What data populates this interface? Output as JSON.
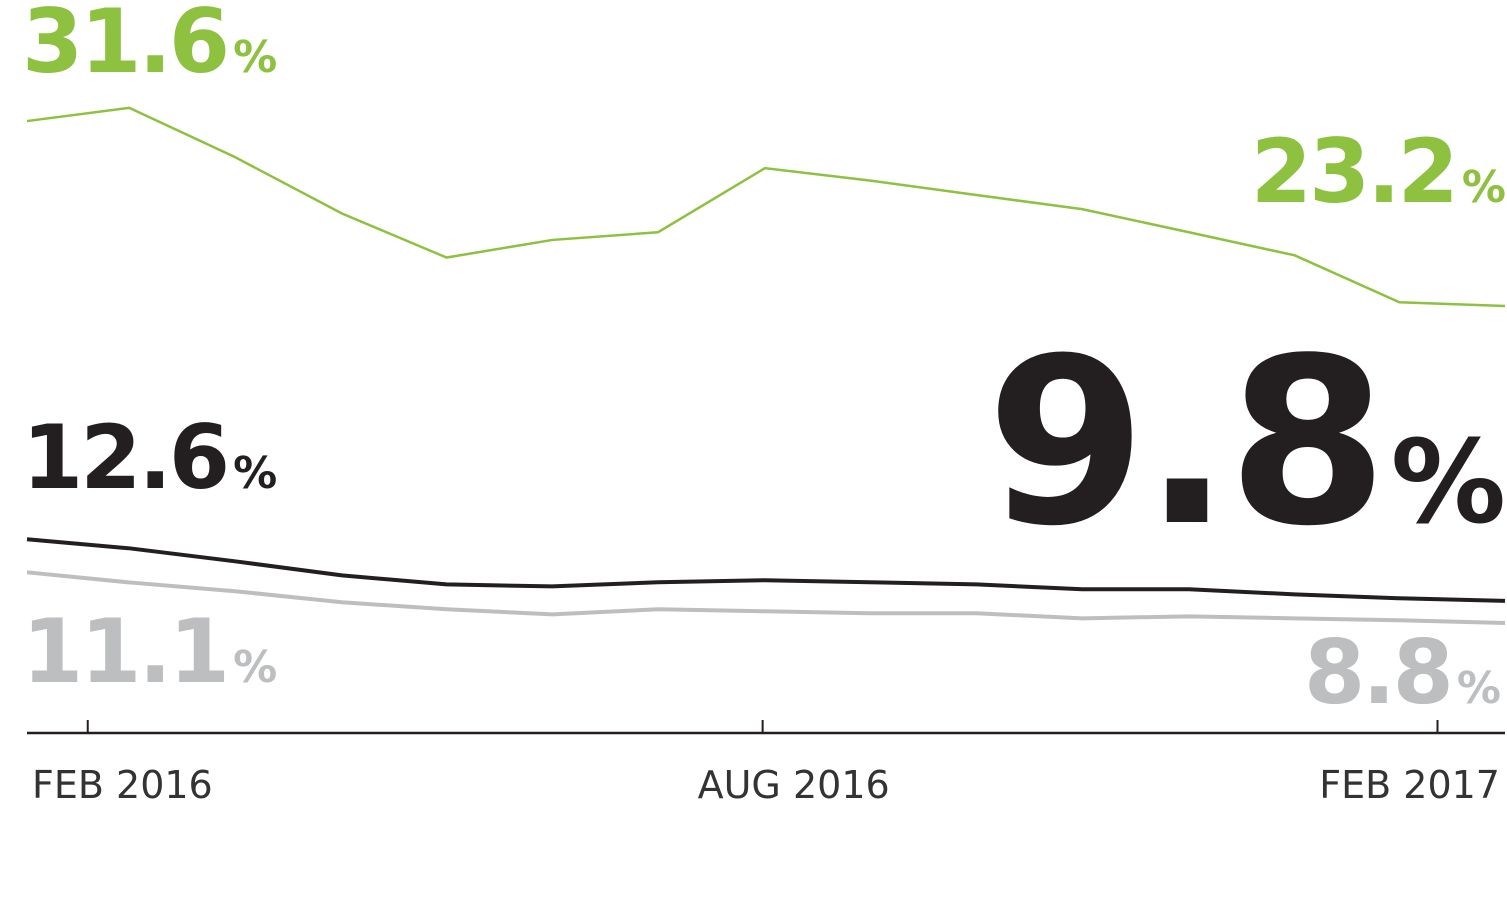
{
  "chart_data": {
    "type": "line",
    "value_unit": "%",
    "x": [
      -0.54,
      0.37,
      1.31,
      2.26,
      3.19,
      4.13,
      5.07,
      6.02,
      6.95,
      7.9,
      8.84,
      9.79,
      10.73,
      11.66,
      12.6
    ],
    "xlim": [
      -0.54,
      12.6
    ],
    "xticks": [
      {
        "value": 0,
        "label": "FEB 2016"
      },
      {
        "value": 6,
        "label": "AUG 2016"
      },
      {
        "value": 12,
        "label": "FEB 2017"
      }
    ],
    "ylim": [
      3.8,
      37.1
    ],
    "series": [
      {
        "color": "#8dc13f",
        "width": 2.5,
        "values": [
          31.6,
          32.2,
          29.96,
          27.4,
          25.4,
          26.2,
          26.55,
          29.46,
          28.9,
          28.24,
          27.6,
          26.55,
          25.5,
          23.37,
          23.2
        ],
        "value_labels": [
          "31.6",
          null,
          null,
          null,
          null,
          null,
          null,
          null,
          null,
          null,
          null,
          null,
          null,
          null,
          "23.2"
        ]
      },
      {
        "color": "#231f20",
        "width": 4,
        "values": [
          12.6,
          12.19,
          11.6,
          10.96,
          10.55,
          10.46,
          10.65,
          10.74,
          10.65,
          10.55,
          10.33,
          10.33,
          10.1,
          9.92,
          9.8
        ],
        "value_labels": [
          "12.6",
          null,
          null,
          null,
          null,
          null,
          null,
          null,
          null,
          null,
          null,
          null,
          null,
          null,
          "9.8"
        ]
      },
      {
        "color": "#bcbec0",
        "width": 4,
        "values": [
          11.1,
          10.64,
          10.24,
          9.74,
          9.42,
          9.19,
          9.42,
          9.33,
          9.24,
          9.24,
          9.01,
          9.1,
          9.01,
          8.92,
          8.8
        ],
        "value_labels": [
          "11.1",
          null,
          null,
          null,
          null,
          null,
          null,
          null,
          null,
          null,
          null,
          null,
          null,
          null,
          "8.8"
        ]
      }
    ]
  }
}
